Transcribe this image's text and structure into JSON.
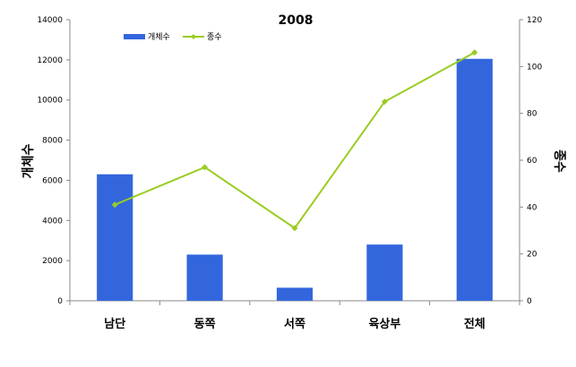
{
  "chart_data": {
    "type": "bar",
    "title": "2008",
    "categories": [
      "남단",
      "동쪽",
      "서쪽",
      "육상부",
      "전체"
    ],
    "series": [
      {
        "name": "개체수",
        "type": "bar",
        "axis": "left",
        "color": "#3366dd",
        "values": [
          6300,
          2300,
          650,
          2800,
          12050
        ]
      },
      {
        "name": "종수",
        "type": "line",
        "axis": "right",
        "color": "#99cc22",
        "values": [
          41,
          57,
          31,
          85,
          106
        ]
      }
    ],
    "ylabel_left": "개체수",
    "ylabel_right": "종수",
    "ylim_left": [
      0,
      14000
    ],
    "ylim_right": [
      0,
      120
    ],
    "yticks_left": [
      "0",
      "2000",
      "4000",
      "6000",
      "8000",
      "10000",
      "12000",
      "14000"
    ],
    "yticks_right": [
      "0",
      "20",
      "40",
      "60",
      "80",
      "100",
      "120"
    ],
    "legend_position": "top-left",
    "grid": false
  }
}
